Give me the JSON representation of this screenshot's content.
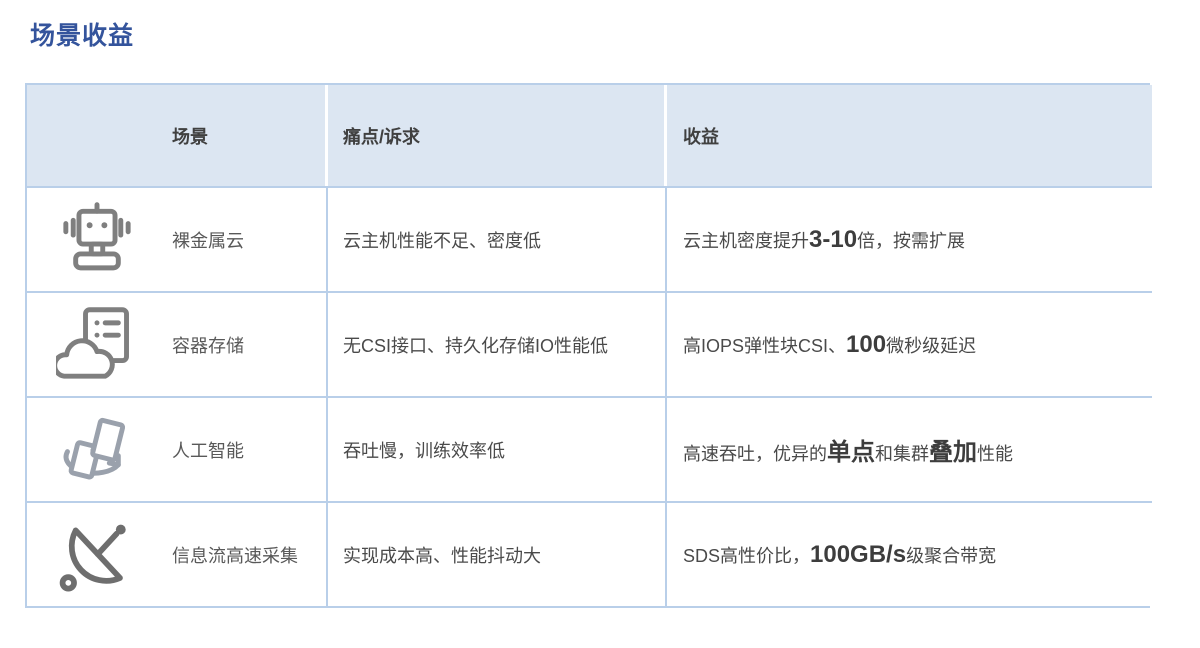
{
  "page": {
    "title": "场景收益"
  },
  "theme": {
    "title_color": "#34549c",
    "header_bg": "#dce6f2",
    "border_color": "#b9cfe9",
    "icon_color": "#7f7f7f",
    "text_color": "#4a4a4a"
  },
  "table": {
    "headers": [
      {
        "label": "场景"
      },
      {
        "label": "痛点/诉求"
      },
      {
        "label": "收益"
      }
    ],
    "rows": [
      {
        "icon": "robot-icon",
        "scenario": "裸金属云",
        "pain": "云主机性能不足、密度低",
        "benefit": [
          {
            "t": "云主机密度提升",
            "em": false
          },
          {
            "t": "3-10",
            "em": true
          },
          {
            "t": "倍，按需扩展",
            "em": false
          }
        ]
      },
      {
        "icon": "container-storage-icon",
        "scenario": "容器存储",
        "pain": "无CSI接口、持久化存储IO性能低",
        "benefit": [
          {
            "t": "高IOPS弹性块CSI、",
            "em": false
          },
          {
            "t": "100",
            "em": true
          },
          {
            "t": "微秒级延迟",
            "em": false
          }
        ]
      },
      {
        "icon": "ai-icon",
        "scenario": "人工智能",
        "pain": "吞吐慢，训练效率低",
        "benefit": [
          {
            "t": "高速吞吐，优异的",
            "em": false
          },
          {
            "t": "单点",
            "em": true
          },
          {
            "t": "和集群",
            "em": false
          },
          {
            "t": "叠加",
            "em": true
          },
          {
            "t": "性能",
            "em": false
          }
        ]
      },
      {
        "icon": "satellite-dish-icon",
        "scenario": "信息流高速采集",
        "pain": "实现成本高、性能抖动大",
        "benefit": [
          {
            "t": "SDS高性价比，",
            "em": false
          },
          {
            "t": "100GB/s",
            "em": true
          },
          {
            "t": "级聚合带宽",
            "em": false
          }
        ]
      }
    ]
  }
}
